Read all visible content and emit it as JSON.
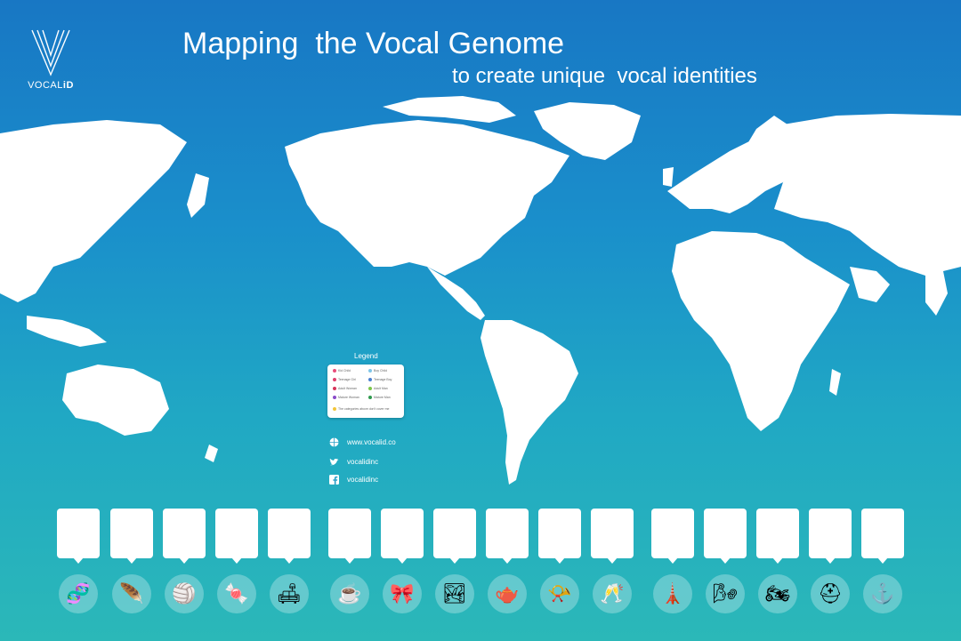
{
  "brand": {
    "logo_text_light": "VOCAL",
    "logo_text_bold": "iD"
  },
  "header": {
    "title": "Mapping  the Vocal Genome",
    "subtitle": "to create unique  vocal identities"
  },
  "legend": {
    "title": "Legend",
    "items": [
      {
        "label": "Kid Child",
        "color": "#e84c7a"
      },
      {
        "label": "Teenage Girl",
        "color": "#e0406e"
      },
      {
        "label": "Adult Woman",
        "color": "#d6345a"
      },
      {
        "label": "Mature Woman",
        "color": "#8a4bc8"
      },
      {
        "label": "Boy Child",
        "color": "#7fc6e8"
      },
      {
        "label": "Teenage Boy",
        "color": "#4a7fd0"
      },
      {
        "label": "Adult Man",
        "color": "#7cc74a"
      },
      {
        "label": "Mature Man",
        "color": "#2f9a4e"
      },
      {
        "label": "The categories above don't cover me",
        "color": "#f2c53a"
      }
    ]
  },
  "social": {
    "website": "www.vocalid.co",
    "twitter": "vocalidinc",
    "facebook": "vocalidinc"
  },
  "icons": [
    {
      "name": "dna-icon",
      "glyph": "🧬"
    },
    {
      "name": "feather-icon",
      "glyph": "🪶"
    },
    {
      "name": "beach-ball-icon",
      "glyph": "🏐"
    },
    {
      "name": "gumball-machine-icon",
      "glyph": "🍬"
    },
    {
      "name": "armchair-icon",
      "glyph": "🛋"
    },
    {
      "name": "coffee-cup-icon",
      "glyph": "☕"
    },
    {
      "name": "bow-tie-icon",
      "glyph": "🎀"
    },
    {
      "name": "landscape-icon",
      "glyph": "🏞"
    },
    {
      "name": "teapot-icon",
      "glyph": "🫖"
    },
    {
      "name": "whistle-icon",
      "glyph": "📯"
    },
    {
      "name": "champagne-glass-icon",
      "glyph": "🥂"
    },
    {
      "name": "lighthouse-icon",
      "glyph": "🗼"
    },
    {
      "name": "windmill-icon",
      "glyph": "🌬"
    },
    {
      "name": "motorcycle-icon",
      "glyph": "🏍"
    },
    {
      "name": "knight-helmet-icon",
      "glyph": "⛑"
    },
    {
      "name": "anchor-icon",
      "glyph": "⚓"
    }
  ]
}
